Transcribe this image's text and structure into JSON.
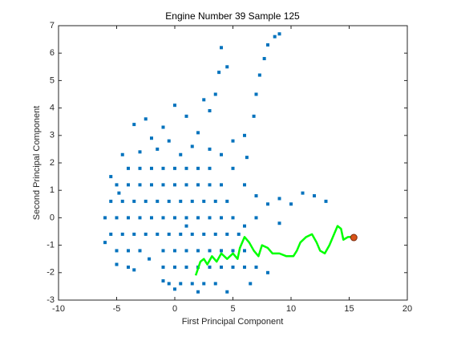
{
  "chart_data": {
    "type": "scatter",
    "title": "Engine Number 39 Sample 125",
    "x_label": "First Principal Component",
    "y_label": "Second Principal Component",
    "xlim": [
      -10,
      20
    ],
    "xticks": [
      -10,
      -5,
      0,
      5,
      10,
      15,
      20
    ],
    "ylim": [
      -3,
      7
    ],
    "yticks": [
      -3,
      -2,
      -1,
      0,
      1,
      2,
      3,
      4,
      5,
      6,
      7
    ],
    "series": [
      {
        "type": "scatter",
        "color": "#0072bd",
        "x": [
          -4,
          -3,
          -2,
          -1,
          0,
          1,
          2,
          3,
          -5,
          -4,
          -3,
          -2,
          -1,
          0,
          1,
          2,
          3,
          4,
          -5.5,
          -4.5,
          -3.5,
          -2.5,
          -1.5,
          -0.5,
          0.5,
          1.5,
          2.5,
          3.5,
          4.5,
          -6,
          -5,
          -4,
          -3,
          -2,
          -1,
          0,
          1,
          2,
          3,
          4,
          5,
          -5.5,
          -4.5,
          -3.5,
          -2.5,
          -1.5,
          -0.5,
          0.5,
          1.5,
          2.5,
          3.5,
          4.5,
          5.5,
          -5,
          -4,
          -3,
          -1,
          0,
          1,
          2,
          3,
          4,
          5,
          6,
          -4,
          -1,
          0,
          1,
          2,
          3,
          4,
          5,
          6,
          7,
          -0.5,
          0.5,
          1.5,
          2.5,
          3.5,
          -3,
          -2,
          -1,
          0,
          -2.5,
          -1.5,
          1,
          2,
          1.5,
          -4.5,
          3,
          3.5,
          3.8,
          4,
          4.5,
          3,
          5,
          6,
          6.8,
          7.3,
          7.7,
          8,
          8.6,
          9,
          7,
          6.2,
          -3.5,
          0.5,
          -0.5,
          -5.5,
          -6,
          -5,
          -3.5,
          6,
          7,
          8,
          9,
          10,
          11,
          12,
          13,
          9,
          7,
          6,
          8,
          6.5,
          4.5,
          2,
          0,
          -1,
          5,
          4,
          2.5,
          1,
          -2.2,
          -4.8
        ],
        "values": [
          1.8,
          1.8,
          1.8,
          1.8,
          1.8,
          1.8,
          1.8,
          1.8,
          1.2,
          1.2,
          1.2,
          1.2,
          1.2,
          1.2,
          1.2,
          1.2,
          1.2,
          1.2,
          0.6,
          0.6,
          0.6,
          0.6,
          0.6,
          0.6,
          0.6,
          0.6,
          0.6,
          0.6,
          0.6,
          0,
          0,
          0,
          0,
          0,
          0,
          0,
          0,
          0,
          0,
          0,
          0,
          -0.6,
          -0.6,
          -0.6,
          -0.6,
          -0.6,
          -0.6,
          -0.6,
          -0.6,
          -0.6,
          -0.6,
          -0.6,
          -0.6,
          -1.2,
          -1.2,
          -1.2,
          -1.2,
          -1.2,
          -1.2,
          -1.2,
          -1.2,
          -1.2,
          -1.2,
          -1.2,
          -1.8,
          -1.8,
          -1.8,
          -1.8,
          -1.8,
          -1.8,
          -1.8,
          -1.8,
          -1.8,
          -1.8,
          -2.4,
          -2.4,
          -2.4,
          -2.4,
          -2.4,
          2.4,
          2.9,
          3.3,
          4.1,
          3.6,
          2.5,
          3.7,
          3.1,
          2.6,
          2.3,
          3.9,
          4.5,
          5.3,
          6.2,
          5.5,
          2.5,
          2.8,
          3,
          3.7,
          5.2,
          5.8,
          6.3,
          6.6,
          6.7,
          4.5,
          2.2,
          3.4,
          2.3,
          2.8,
          1.5,
          -0.9,
          -1.7,
          -1.9,
          1.2,
          0.8,
          0.5,
          0.7,
          0.5,
          0.9,
          0.8,
          0.6,
          -0.2,
          0,
          -0.3,
          -2,
          -2.4,
          -2.7,
          -2.7,
          -2.6,
          -2.3,
          1.8,
          2.3,
          4.3,
          -0.3,
          -1.5,
          0.9
        ]
      },
      {
        "type": "line",
        "color": "#00ff00",
        "x": [
          1.8,
          2.2,
          2.5,
          2.8,
          3.2,
          3.6,
          4,
          4.5,
          5,
          5.4,
          5.6,
          6,
          6.4,
          6.8,
          7.2,
          7.5,
          8,
          8.4,
          9,
          9.6,
          10.2,
          10.5,
          10.8,
          11.3,
          11.8,
          12.2,
          12.5,
          12.9,
          13.3,
          13.7,
          14,
          14.3,
          14.5,
          14.9,
          15.4
        ],
        "values": [
          -2.1,
          -1.6,
          -1.5,
          -1.7,
          -1.4,
          -1.6,
          -1.3,
          -1.5,
          -1.3,
          -1.5,
          -1.1,
          -0.7,
          -0.9,
          -1.2,
          -1.4,
          -1.0,
          -1.1,
          -1.3,
          -1.3,
          -1.4,
          -1.4,
          -1.2,
          -0.9,
          -0.7,
          -0.6,
          -0.9,
          -1.2,
          -1.3,
          -1.0,
          -0.6,
          -0.3,
          -0.4,
          -0.8,
          -0.7,
          -0.7
        ]
      },
      {
        "type": "point",
        "color": "#d95319",
        "x": [
          15.4
        ],
        "values": [
          -0.72
        ]
      }
    ]
  }
}
